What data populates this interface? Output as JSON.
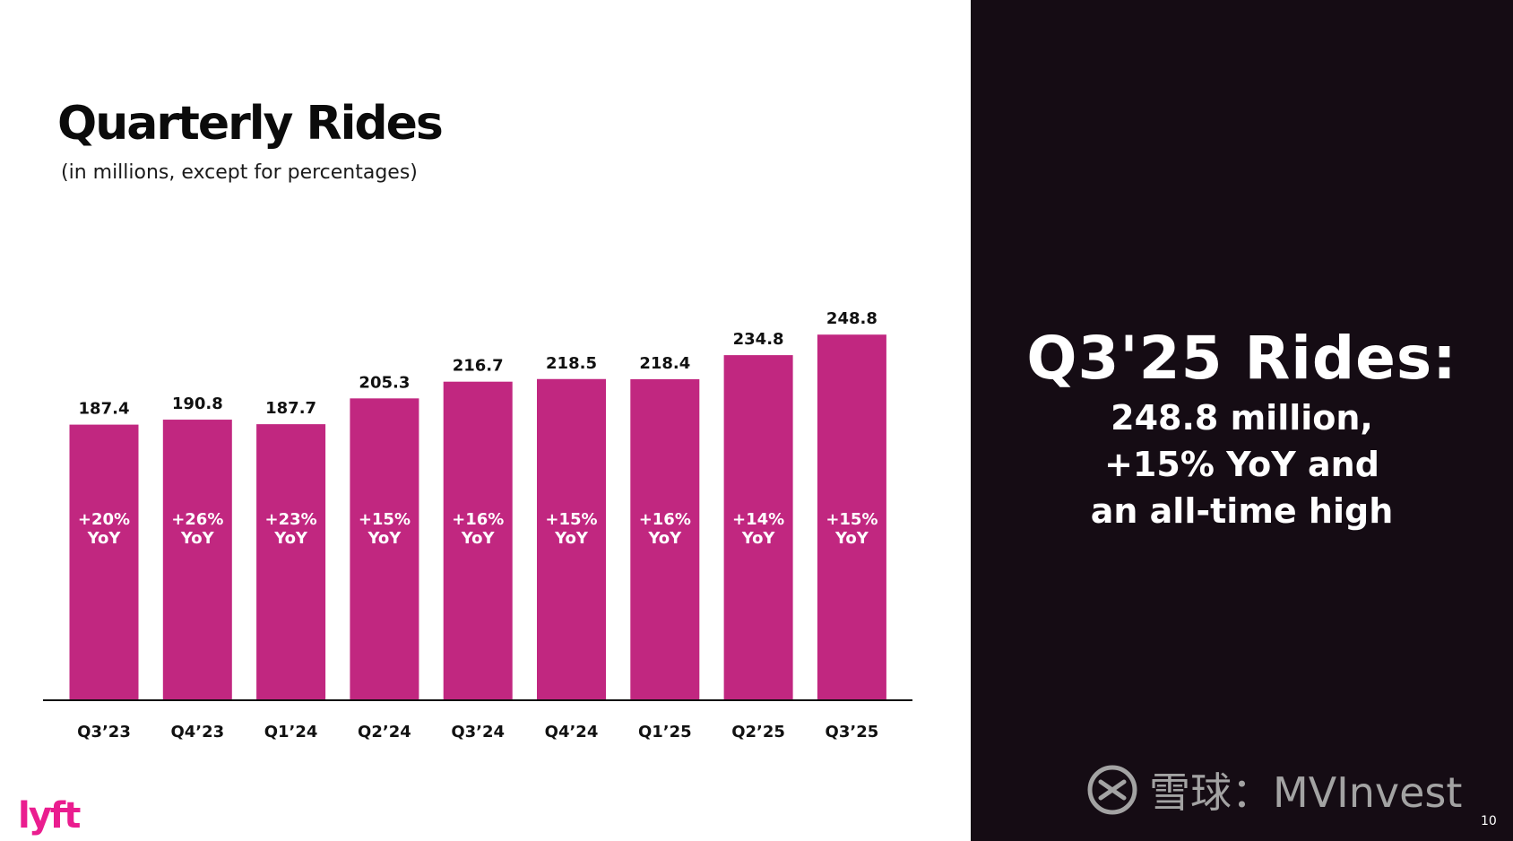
{
  "title": "Quarterly Rides",
  "subtitle": "(in millions, except for percentages)",
  "logo_text": "lyft",
  "callout": {
    "headline": "Q3'25 Rides:",
    "lines": [
      "248.8 million,",
      "+15% YoY and",
      "an all-time high"
    ]
  },
  "watermark": "雪球：MVInvest",
  "page_number": "10",
  "colors": {
    "bar": "#c12780",
    "right_panel": "#150c14",
    "logo": "#ea1d8f"
  },
  "chart_data": {
    "type": "bar",
    "categories": [
      "Q3’23",
      "Q4’23",
      "Q1’24",
      "Q2’24",
      "Q3’24",
      "Q4’24",
      "Q1’25",
      "Q2’25",
      "Q3’25"
    ],
    "values": [
      187.4,
      190.8,
      187.7,
      205.3,
      216.7,
      218.5,
      218.4,
      234.8,
      248.8
    ],
    "value_labels": [
      "187.4",
      "190.8",
      "187.7",
      "205.3",
      "216.7",
      "218.5",
      "218.4",
      "234.8",
      "248.8"
    ],
    "yoy_labels": [
      "+20%",
      "+26%",
      "+23%",
      "+15%",
      "+16%",
      "+15%",
      "+16%",
      "+14%",
      "+15%"
    ],
    "yoy_suffix": "YoY",
    "ylim": [
      0,
      280
    ],
    "grid": false,
    "legend": "none"
  }
}
